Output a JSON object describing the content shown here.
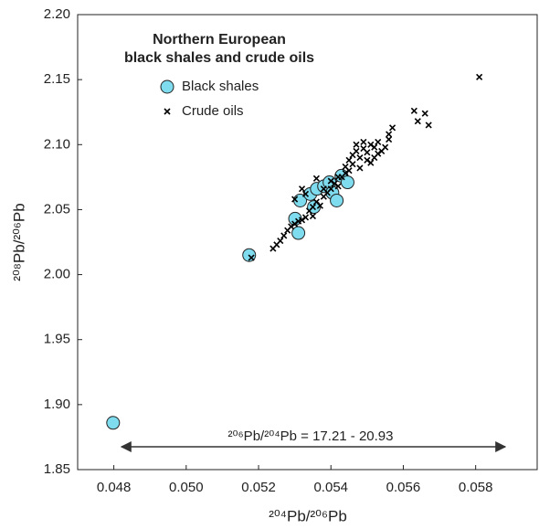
{
  "chart_data": {
    "type": "scatter",
    "title": [
      "Northern European",
      "black shales and crude oils"
    ],
    "x_label": "²⁰⁴Pb/²⁰⁶Pb",
    "y_label": "²⁰⁸Pb/²⁰⁶Pb",
    "annotation": "²⁰⁶Pb/²⁰⁴Pb = 17.21 - 20.93",
    "xlim": [
      0.047,
      0.0597
    ],
    "ylim": [
      1.85,
      2.2
    ],
    "xticks": [
      0.048,
      {
        "value": 0.05,
        "label": "0.050"
      },
      0.052,
      0.054,
      0.056,
      0.058
    ],
    "yticks": [
      1.85,
      {
        "value": 1.9,
        "label": "1.90"
      },
      1.95,
      {
        "value": 2.0,
        "label": "2.00"
      },
      2.05,
      {
        "value": 2.1,
        "label": "2.10"
      },
      2.15,
      {
        "value": 2.2,
        "label": "2.20"
      }
    ],
    "series": [
      {
        "name": "Black shales",
        "color": "#7fdcee",
        "marker": "circle",
        "x": [
          0.04798,
          0.05174,
          0.05301,
          0.0531,
          0.05315,
          0.05343,
          0.05361,
          0.05353,
          0.05381,
          0.05396,
          0.05404,
          0.05416,
          0.05429,
          0.05446
        ],
        "values": [
          1.886,
          2.015,
          2.043,
          2.032,
          2.057,
          2.062,
          2.066,
          2.052,
          2.068,
          2.071,
          2.063,
          2.057,
          2.076,
          2.071
        ]
      },
      {
        "name": "Crude oils",
        "color": "#000000",
        "marker": "x",
        "x": [
          0.0518,
          0.0524,
          0.0525,
          0.0526,
          0.0527,
          0.0528,
          0.0529,
          0.053,
          0.0531,
          0.0532,
          0.0533,
          0.0534,
          0.0535,
          0.0535,
          0.0536,
          0.0537,
          0.0538,
          0.0539,
          0.054,
          0.0541,
          0.0542,
          0.0543,
          0.0544,
          0.0545,
          0.0545,
          0.0546,
          0.0546,
          0.0547,
          0.0547,
          0.0548,
          0.0548,
          0.0549,
          0.0549,
          0.055,
          0.055,
          0.0551,
          0.0551,
          0.0552,
          0.0552,
          0.0553,
          0.0553,
          0.0554,
          0.0555,
          0.0556,
          0.0556,
          0.0557,
          0.0563,
          0.0564,
          0.0566,
          0.0567,
          0.0581,
          0.0533,
          0.0536,
          0.0538,
          0.054,
          0.0542,
          0.0544,
          0.053,
          0.0532
        ],
        "values": [
          2.013,
          2.02,
          2.023,
          2.026,
          2.03,
          2.034,
          2.037,
          2.039,
          2.041,
          2.042,
          2.044,
          2.049,
          2.052,
          2.045,
          2.056,
          2.053,
          2.06,
          2.063,
          2.066,
          2.07,
          2.068,
          2.075,
          2.078,
          2.08,
          2.088,
          2.085,
          2.092,
          2.095,
          2.1,
          2.09,
          2.082,
          2.097,
          2.102,
          2.088,
          2.094,
          2.1,
          2.086,
          2.098,
          2.09,
          2.102,
          2.093,
          2.095,
          2.098,
          2.104,
          2.108,
          2.113,
          2.126,
          2.118,
          2.124,
          2.115,
          2.152,
          2.062,
          2.074,
          2.066,
          2.072,
          2.075,
          2.083,
          2.058,
          2.066
        ]
      }
    ]
  }
}
